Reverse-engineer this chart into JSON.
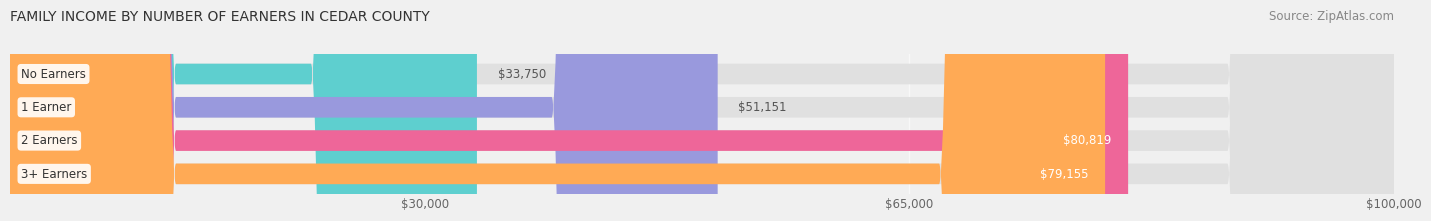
{
  "title": "FAMILY INCOME BY NUMBER OF EARNERS IN CEDAR COUNTY",
  "source": "Source: ZipAtlas.com",
  "categories": [
    "No Earners",
    "1 Earner",
    "2 Earners",
    "3+ Earners"
  ],
  "values": [
    33750,
    51151,
    80819,
    79155
  ],
  "bar_colors": [
    "#5ECFCF",
    "#9999DD",
    "#EE6699",
    "#FFAA55"
  ],
  "xlim_min": 0,
  "xlim_max": 100000,
  "xticks": [
    30000,
    65000,
    100000
  ],
  "xtick_labels": [
    "$30,000",
    "$65,000",
    "$100,000"
  ],
  "background_color": "#f0f0f0",
  "bar_bg_color": "#e0e0e0",
  "title_fontsize": 10,
  "source_fontsize": 8.5,
  "tick_fontsize": 8.5,
  "label_fontsize": 8.5,
  "bar_height": 0.62
}
